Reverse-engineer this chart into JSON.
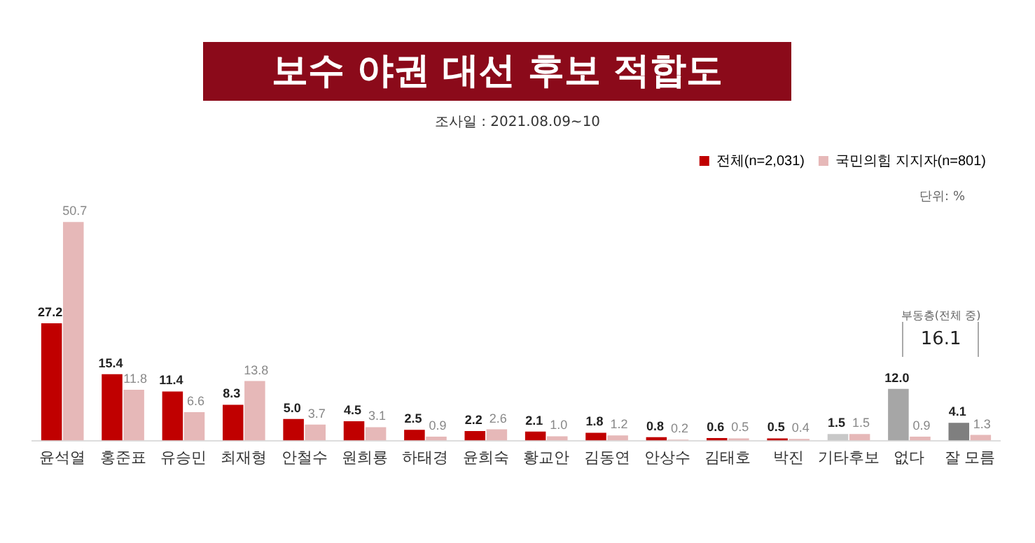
{
  "chart_data": {
    "type": "bar",
    "title": "보수 야권 대선 후보 적합도",
    "subtitle": "조사일 : 2021.08.09~10",
    "categories": [
      "윤석열",
      "홍준표",
      "유승민",
      "최재형",
      "안철수",
      "원희룡",
      "하태경",
      "윤희숙",
      "황교안",
      "김동연",
      "안상수",
      "김태호",
      "박진",
      "기타후보",
      "없다",
      "잘 모름"
    ],
    "series": [
      {
        "name": "전체(n=2,031)",
        "color": "#c00000",
        "colors": [
          "#c00000",
          "#c00000",
          "#c00000",
          "#c00000",
          "#c00000",
          "#c00000",
          "#c00000",
          "#c00000",
          "#c00000",
          "#c00000",
          "#c00000",
          "#c00000",
          "#c00000",
          "#c8c8c8",
          "#a6a6a6",
          "#7f7f7f"
        ],
        "values": [
          27.2,
          15.4,
          11.4,
          8.3,
          5.0,
          4.5,
          2.5,
          2.2,
          2.1,
          1.8,
          0.8,
          0.6,
          0.5,
          1.5,
          12.0,
          4.1
        ],
        "value_labels": [
          "27.2",
          "15.4",
          "11.4",
          "8.3",
          "5.0",
          "4.5",
          "2.5",
          "2.2",
          "2.1",
          "1.8",
          "0.8",
          "0.6",
          "0.5",
          "1.5",
          "12.0",
          "4.1"
        ]
      },
      {
        "name": "국민의힘 지지자(n=801)",
        "color": "#e6b8b8",
        "values": [
          50.7,
          11.8,
          6.6,
          13.8,
          3.7,
          3.1,
          0.9,
          2.6,
          1.0,
          1.2,
          0.2,
          0.5,
          0.4,
          1.5,
          0.9,
          1.3
        ],
        "value_labels": [
          "50.7",
          "11.8",
          "6.6",
          "13.8",
          "3.7",
          "3.1",
          "0.9",
          "2.6",
          "1.0",
          "1.2",
          "0.2",
          "0.5",
          "0.4",
          "1.5",
          "0.9",
          "1.3"
        ]
      }
    ],
    "legend": "top right",
    "annotations": [
      "단위: %",
      "부동층(전체 중)",
      "16.1"
    ]
  }
}
